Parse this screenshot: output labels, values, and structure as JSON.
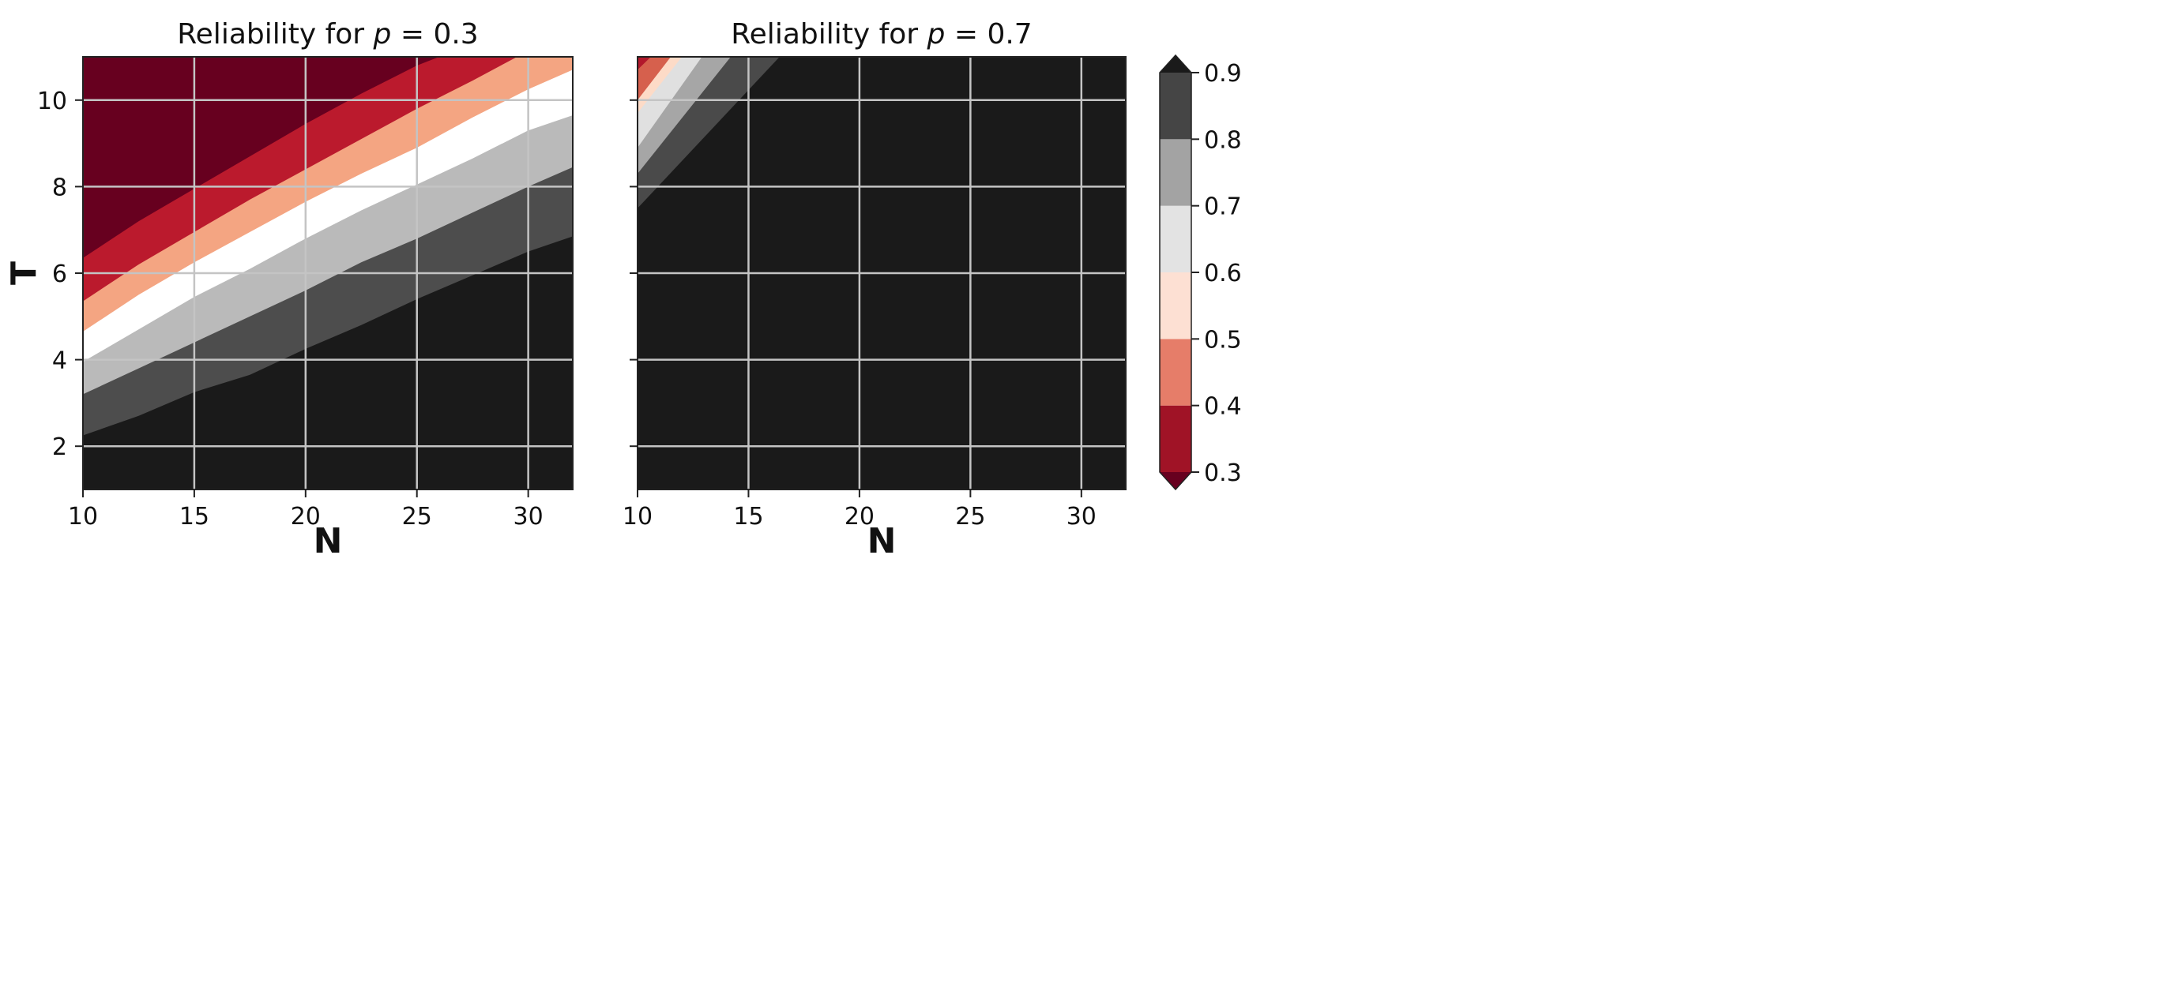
{
  "chart_data": [
    {
      "type": "contour",
      "title": "Reliability for p = 0.3",
      "title_prefix": "Reliability for ",
      "title_var": "p",
      "title_suffix": " = 0.3",
      "p": 0.3,
      "xlabel": "N",
      "ylabel": "T",
      "xlim": [
        10,
        32
      ],
      "ylim": [
        1,
        11
      ],
      "xticks": [
        10,
        15,
        20,
        25,
        30
      ],
      "yticks": [
        2,
        4,
        6,
        8,
        10
      ],
      "grid": true,
      "band_boundaries": [
        {
          "level": 0.3,
          "points": [
            [
              10,
              6.35
            ],
            [
              12.5,
              7.2
            ],
            [
              15,
              7.95
            ],
            [
              17.5,
              8.7
            ],
            [
              20,
              9.45
            ],
            [
              22.5,
              10.15
            ],
            [
              25,
              10.8
            ],
            [
              26,
              11
            ]
          ]
        },
        {
          "level": 0.4,
          "points": [
            [
              10,
              5.35
            ],
            [
              12.5,
              6.2
            ],
            [
              15,
              6.95
            ],
            [
              17.5,
              7.7
            ],
            [
              20,
              8.4
            ],
            [
              22.5,
              9.1
            ],
            [
              25,
              9.8
            ],
            [
              27.5,
              10.45
            ],
            [
              29.5,
              11
            ]
          ]
        },
        {
          "level": 0.5,
          "points": [
            [
              10,
              4.65
            ],
            [
              12.5,
              5.5
            ],
            [
              15,
              6.25
            ],
            [
              17.5,
              6.95
            ],
            [
              20,
              7.65
            ],
            [
              22.5,
              8.3
            ],
            [
              25,
              8.9
            ],
            [
              27.5,
              9.6
            ],
            [
              30,
              10.25
            ],
            [
              32,
              10.7
            ]
          ]
        },
        {
          "level": 0.6,
          "points": [
            [
              10,
              3.95
            ],
            [
              12.5,
              4.7
            ],
            [
              15,
              5.45
            ],
            [
              17.5,
              6.1
            ],
            [
              20,
              6.8
            ],
            [
              22.5,
              7.45
            ],
            [
              25,
              8.05
            ],
            [
              27.5,
              8.65
            ],
            [
              30,
              9.3
            ],
            [
              32,
              9.65
            ]
          ]
        },
        {
          "level": 0.7,
          "points": [
            [
              10,
              3.2
            ],
            [
              12.5,
              3.8
            ],
            [
              15,
              4.4
            ],
            [
              17.5,
              5.0
            ],
            [
              20,
              5.6
            ],
            [
              22.5,
              6.25
            ],
            [
              25,
              6.8
            ],
            [
              27.5,
              7.4
            ],
            [
              30,
              8.0
            ],
            [
              32,
              8.45
            ]
          ]
        },
        {
          "level": 0.8,
          "points": [
            [
              10,
              2.25
            ],
            [
              12.5,
              2.7
            ],
            [
              15,
              3.25
            ],
            [
              17.5,
              3.65
            ],
            [
              20,
              4.25
            ],
            [
              22.5,
              4.8
            ],
            [
              25,
              5.4
            ],
            [
              27.5,
              5.95
            ],
            [
              30,
              6.5
            ],
            [
              32,
              6.85
            ]
          ]
        }
      ]
    },
    {
      "type": "contour",
      "title": "Reliability for p = 0.7",
      "title_prefix": "Reliability for ",
      "title_var": "p",
      "title_suffix": " = 0.7",
      "p": 0.7,
      "xlabel": "N",
      "ylabel": "",
      "xlim": [
        10,
        32
      ],
      "ylim": [
        1,
        11
      ],
      "xticks": [
        10,
        15,
        20,
        25,
        30
      ],
      "yticks": [
        2,
        4,
        6,
        8,
        10
      ],
      "show_ytick_labels": false,
      "grid": true,
      "band_boundaries": [
        {
          "level": 0.3,
          "points": [
            [
              10,
              10.7
            ],
            [
              10.6,
              11
            ]
          ]
        },
        {
          "level": 0.4,
          "points": [
            [
              10,
              10.0
            ],
            [
              11.5,
              11
            ]
          ]
        },
        {
          "level": 0.5,
          "points": [
            [
              10,
              9.7
            ],
            [
              12.0,
              11
            ]
          ]
        },
        {
          "level": 0.6,
          "points": [
            [
              10,
              8.9
            ],
            [
              12.9,
              11
            ]
          ]
        },
        {
          "level": 0.7,
          "points": [
            [
              10,
              8.3
            ],
            [
              14.2,
              11
            ]
          ]
        },
        {
          "level": 0.8,
          "points": [
            [
              10,
              7.5
            ],
            [
              16.4,
              11
            ]
          ]
        }
      ]
    }
  ],
  "colorbar": {
    "levels": [
      0.3,
      0.4,
      0.5,
      0.6,
      0.7,
      0.8,
      0.9
    ],
    "tick_labels": [
      "0.3",
      "0.4",
      "0.5",
      "0.6",
      "0.7",
      "0.8",
      "0.9"
    ],
    "extend": "both",
    "colors": [
      "#a01326",
      "#e67d69",
      "#fde0d3",
      "#e3e3e3",
      "#a3a3a3",
      "#454545"
    ],
    "under_color": "#67001f",
    "over_color": "#1a1a1a"
  },
  "band_colors_left": [
    "#67001f",
    "#bb1a2d",
    "#f4a582",
    "#ffffff",
    "#bababa",
    "#4d4d4d",
    "#1a1a1a"
  ],
  "band_colors_right": [
    "#b2182b",
    "#d6604d",
    "#fddbc7",
    "#e0e0e0",
    "#a6a6a6",
    "#4a4a4a",
    "#1a1a1a"
  ],
  "grid_color": "#c4c4c4"
}
